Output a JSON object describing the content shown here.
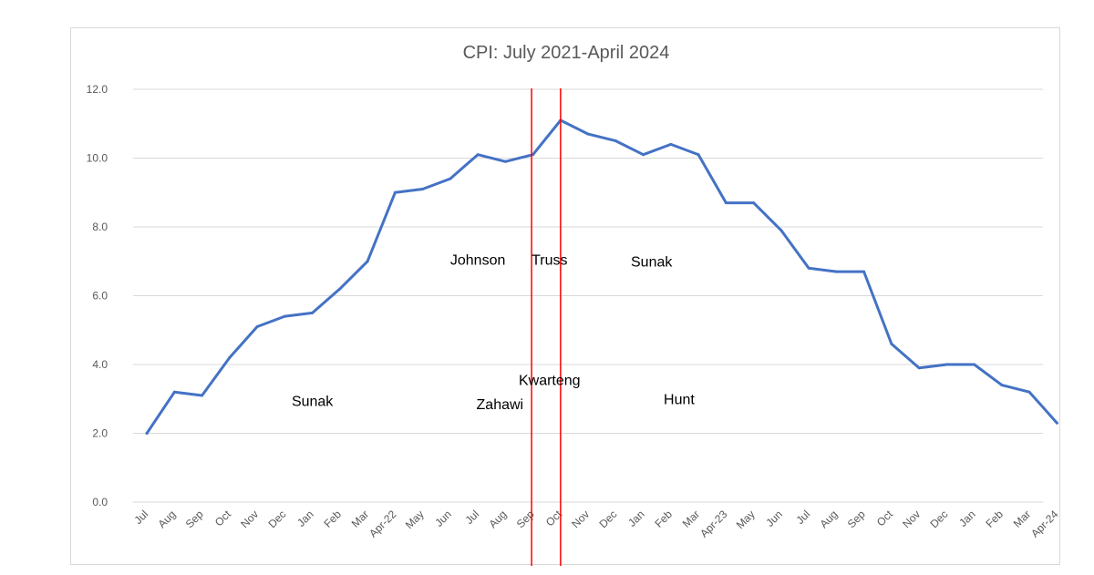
{
  "chart_data": {
    "type": "line",
    "title": "CPI: July 2021-April 2024",
    "xlabel": "",
    "ylabel": "",
    "ylim": [
      0,
      12
    ],
    "yticks": [
      "0.0",
      "2.0",
      "4.0",
      "6.0",
      "8.0",
      "10.0",
      "12.0"
    ],
    "grid": true,
    "categories": [
      "Jul",
      "Aug",
      "Sep",
      "Oct",
      "Nov",
      "Dec",
      "Jan",
      "Feb",
      "Mar",
      "Apr-22",
      "May",
      "Jun",
      "Jul",
      "Aug",
      "Sep",
      "Oct",
      "Nov",
      "Dec",
      "Jan",
      "Feb",
      "Mar",
      "Apr-23",
      "May",
      "Jun",
      "Jul",
      "Aug",
      "Sep",
      "Oct",
      "Nov",
      "Dec",
      "Jan",
      "Feb",
      "Mar",
      "Apr-24"
    ],
    "series": [
      {
        "color": "#4472c4",
        "values": [
          2.0,
          3.2,
          3.1,
          4.2,
          5.1,
          5.4,
          5.5,
          6.2,
          7.0,
          9.0,
          9.1,
          9.4,
          10.1,
          9.9,
          10.1,
          11.1,
          10.7,
          10.5,
          10.1,
          10.4,
          10.1,
          8.7,
          8.7,
          7.9,
          6.8,
          6.7,
          6.7,
          4.6,
          3.9,
          4.0,
          4.0,
          3.4,
          3.2,
          2.3
        ]
      }
    ],
    "markers": [
      {
        "between": [
          "Aug",
          "Sep"
        ],
        "category_index": 13.95,
        "color": "#ff0000"
      },
      {
        "between": [
          "Sep",
          "Oct"
        ],
        "category_index": 15.0,
        "color": "#ff0000"
      }
    ],
    "annotations": [
      {
        "text": "Sunak",
        "category_index": 6.0,
        "y": 2.8
      },
      {
        "text": "Johnson",
        "category_index": 12.0,
        "y": 6.9
      },
      {
        "text": "Zahawi",
        "category_index": 12.8,
        "y": 2.7
      },
      {
        "text": "Truss",
        "category_index": 14.6,
        "y": 6.9
      },
      {
        "text": "Kwarteng",
        "category_index": 14.6,
        "y": 3.4
      },
      {
        "text": "Sunak",
        "category_index": 18.3,
        "y": 6.85
      },
      {
        "text": "Hunt",
        "category_index": 19.3,
        "y": 2.85
      }
    ]
  }
}
